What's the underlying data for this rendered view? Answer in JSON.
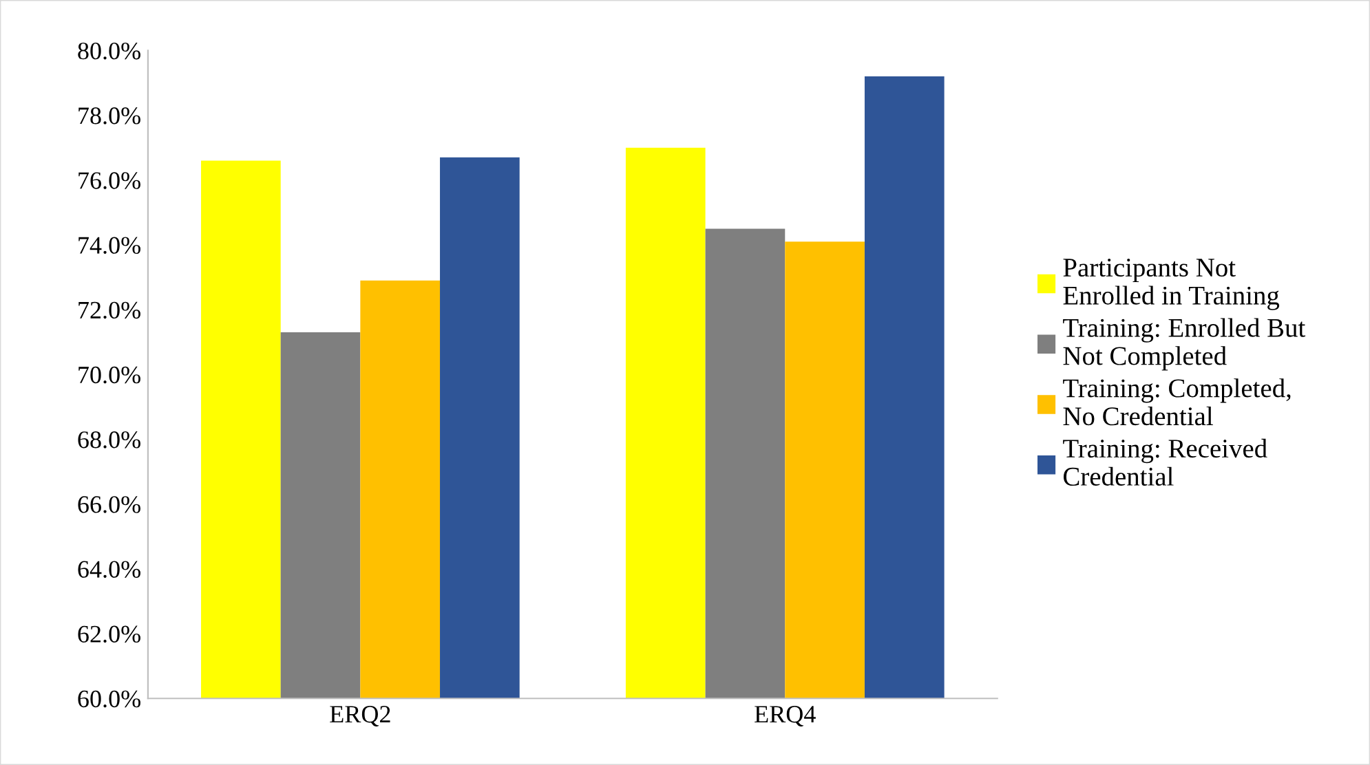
{
  "chart_data": {
    "type": "bar",
    "categories": [
      "ERQ2",
      "ERQ4"
    ],
    "series": [
      {
        "name": "Participants Not Enrolled in Training",
        "color": "#ffff00",
        "values": [
          76.6,
          77.0
        ]
      },
      {
        "name": "Training: Enrolled But Not Completed",
        "color": "#7f7f7f",
        "values": [
          71.3,
          74.5
        ]
      },
      {
        "name": "Training: Completed, No Credential",
        "color": "#ffc000",
        "values": [
          72.9,
          74.1
        ]
      },
      {
        "name": "Training: Received Credential",
        "color": "#2f5597",
        "values": [
          76.7,
          79.2
        ]
      }
    ],
    "ylim": [
      60,
      80
    ],
    "yticks": [
      {
        "value": 60,
        "label": "60.0%"
      },
      {
        "value": 62,
        "label": "62.0%"
      },
      {
        "value": 64,
        "label": "64.0%"
      },
      {
        "value": 66,
        "label": "66.0%"
      },
      {
        "value": 68,
        "label": "68.0%"
      },
      {
        "value": 70,
        "label": "70.0%"
      },
      {
        "value": 72,
        "label": "72.0%"
      },
      {
        "value": 74,
        "label": "74.0%"
      },
      {
        "value": 76,
        "label": "76.0%"
      },
      {
        "value": 78,
        "label": "78.0%"
      },
      {
        "value": 80,
        "label": "80.0%"
      }
    ],
    "grid": false,
    "legend": "right"
  }
}
